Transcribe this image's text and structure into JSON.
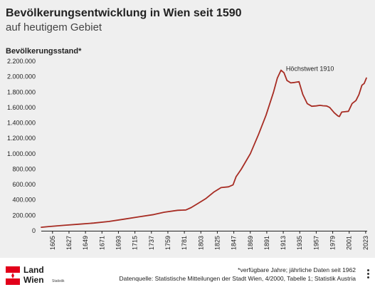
{
  "header": {
    "title": "Bevölkerungsentwicklung in Wien seit 1590",
    "subtitle": "auf heutigem Gebiet"
  },
  "footer": {
    "logo_line1": "Land",
    "logo_line2": "Wien",
    "logo_sub": "Statistik",
    "note": "*verfügbare Jahre; jährliche Daten seit 1962",
    "source": "Datenquelle: Statistische Mitteilungen der Stadt Wien, 4/2000, Tabelle 1; Statistik Austria",
    "menu_icon": "more-vertical-icon"
  },
  "colors": {
    "line": "#a72c23",
    "background": "#efefef",
    "axis": "#222222",
    "flag_red": "#e2001a"
  },
  "chart_data": {
    "type": "line",
    "title": "Bevölkerungsentwicklung in Wien seit 1590",
    "subtitle": "auf heutigem Gebiet",
    "ylabel": "Bevölkerungsstand*",
    "xlabel": "",
    "xlim": [
      1590,
      2025
    ],
    "ylim": [
      0,
      2200000
    ],
    "yticks": [
      0,
      200000,
      400000,
      600000,
      800000,
      1000000,
      1200000,
      1400000,
      1600000,
      1800000,
      2000000,
      2200000
    ],
    "ytick_labels": [
      "0",
      "200.000",
      "400.000",
      "600.000",
      "800.000",
      "1.000.000",
      "1.200.000",
      "1.400.000",
      "1.600.000",
      "1.800.000",
      "2.000.000",
      "2.200.000"
    ],
    "xticks": [
      1605,
      1627,
      1649,
      1671,
      1693,
      1715,
      1737,
      1759,
      1781,
      1803,
      1825,
      1847,
      1869,
      1891,
      1913,
      1935,
      1957,
      1979,
      2001,
      2023
    ],
    "grid": false,
    "annotations": [
      {
        "text": "Höchstwert 1910",
        "x": 1910,
        "y": 2083630
      }
    ],
    "series": [
      {
        "x": [
          1590,
          1600,
          1620,
          1640,
          1660,
          1680,
          1700,
          1720,
          1740,
          1754,
          1772,
          1783,
          1790,
          1800,
          1810,
          1820,
          1830,
          1840,
          1846,
          1850,
          1857,
          1869,
          1880,
          1890,
          1900,
          1905,
          1910,
          1914,
          1918,
          1923,
          1928,
          1934,
          1939,
          1945,
          1951,
          1957,
          1962,
          1966,
          1971,
          1975,
          1981,
          1986,
          1988,
          1991,
          1995,
          2000,
          2005,
          2010,
          2014,
          2018,
          2021,
          2024
        ],
        "y": [
          45000,
          55000,
          70000,
          85000,
          100000,
          120000,
          150000,
          180000,
          210000,
          240000,
          265000,
          270000,
          300000,
          360000,
          420000,
          500000,
          560000,
          570000,
          595000,
          700000,
          800000,
          1000000,
          1250000,
          1500000,
          1800000,
          1980000,
          2083630,
          2050000,
          1950000,
          1918720,
          1925000,
          1935000,
          1770000,
          1650000,
          1616125,
          1620000,
          1627566,
          1622000,
          1619885,
          1600000,
          1531346,
          1490000,
          1483000,
          1539848,
          1545000,
          1550123,
          1651437,
          1689995,
          1766746,
          1888776,
          1911191,
          1982097
        ]
      }
    ]
  }
}
